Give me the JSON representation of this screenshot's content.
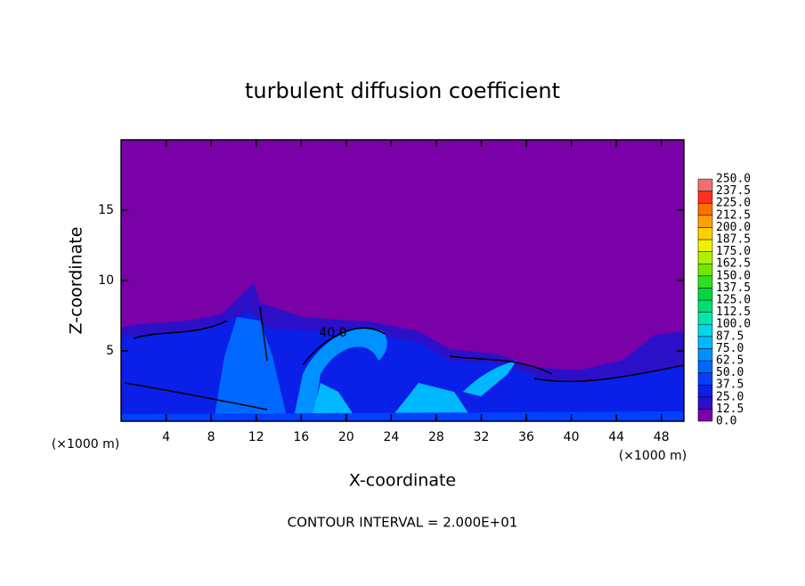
{
  "chart_data": {
    "type": "contour",
    "title": "turbulent diffusion coefficient",
    "xlabel": "X-coordinate",
    "ylabel": "Z-coordinate",
    "x_unit_label": "(×1000 m)",
    "y_unit_label": "(×1000 m)",
    "annotation": "CONTOUR INTERVAL = 2.000E+01",
    "contour_labels": [
      {
        "value": 40,
        "label": "40.0"
      }
    ],
    "xlim": [
      0,
      50
    ],
    "xticks": [
      4,
      8,
      12,
      16,
      20,
      24,
      28,
      32,
      36,
      40,
      44,
      48
    ],
    "ylim": [
      0,
      20
    ],
    "yticks": [
      5,
      10,
      15
    ],
    "colorbar_levels": [
      {
        "value": 0,
        "label": "0.0"
      },
      12.5,
      {
        "value": 25,
        "label": "25.0"
      },
      37.5,
      {
        "value": 50,
        "label": "50.0"
      },
      62.5,
      {
        "value": 75,
        "label": "75.0"
      },
      87.5,
      {
        "value": 100,
        "label": "100.0"
      },
      112.5,
      {
        "value": 125,
        "label": "125.0"
      },
      137.5,
      {
        "value": 150,
        "label": "150.0"
      },
      162.5,
      {
        "value": 175,
        "label": "175.0"
      },
      187.5,
      {
        "value": 200,
        "label": "200.0"
      },
      212.5,
      {
        "value": 225,
        "label": "225.0"
      },
      237.5,
      {
        "value": 250,
        "label": "250.0"
      }
    ],
    "colorbar_colors": [
      "#7a00a8",
      "#2c10c8",
      "#0a20e8",
      "#0040ff",
      "#0068ff",
      "#0090ff",
      "#00b8ff",
      "#00d8e8",
      "#00e8b0",
      "#00e070",
      "#00d840",
      "#30e020",
      "#70e800",
      "#b0f000",
      "#f0f000",
      "#ffd000",
      "#ffa000",
      "#ff7000",
      "#ff3020",
      "#f07070"
    ]
  }
}
